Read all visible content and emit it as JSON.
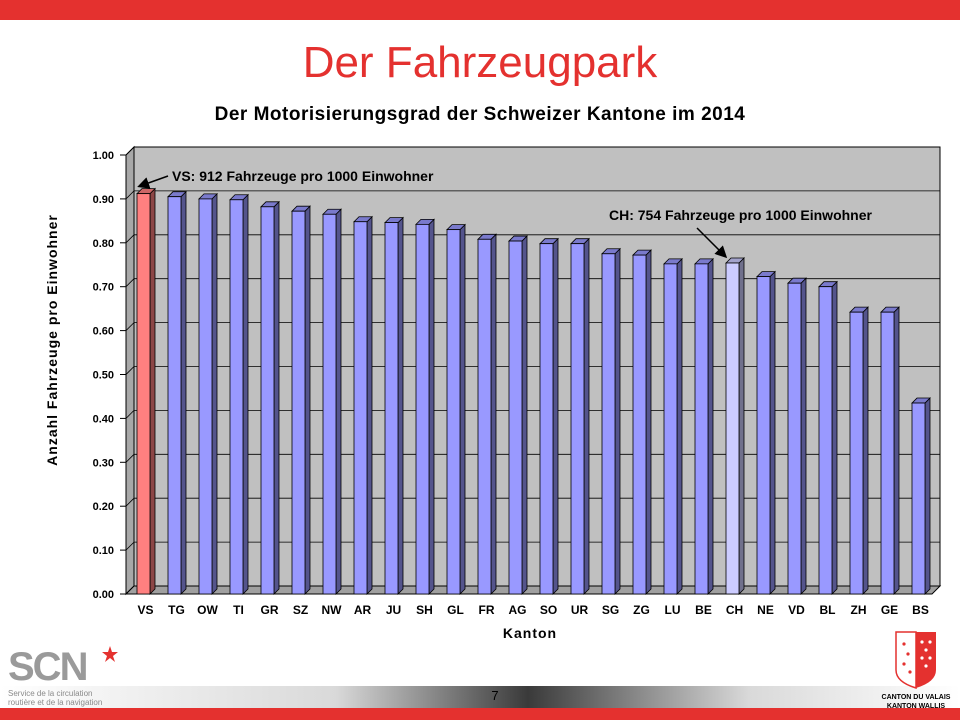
{
  "slide": {
    "title": "Der Fahrzeugpark",
    "page_number": "7"
  },
  "logos": {
    "scn_text": "SCN",
    "scn_caption_1": "Service de la circulation",
    "scn_caption_2": "routière et de la navigation",
    "canton_1": "CANTON DU VALAIS",
    "canton_2": "KANTON WALLIS"
  },
  "colors": {
    "brand_red": "#e4312f",
    "bar_default": "#9999ff",
    "bar_vs": "#ff8080",
    "bar_ch": "#ccccff",
    "plot_bg": "#c0c0c0"
  },
  "chart_data": {
    "type": "bar",
    "title": "Der Motorisierungsgrad der Schweizer Kantone im 2014",
    "xlabel": "Kanton",
    "ylabel": "Anzahl Fahrzeuge pro Einwohner",
    "ylim": [
      0,
      1.0
    ],
    "yticks": [
      "0.00",
      "0.10",
      "0.20",
      "0.30",
      "0.40",
      "0.50",
      "0.60",
      "0.70",
      "0.80",
      "0.90",
      "1.00"
    ],
    "grid": true,
    "categories": [
      "VS",
      "TG",
      "OW",
      "TI",
      "GR",
      "SZ",
      "NW",
      "AR",
      "JU",
      "SH",
      "GL",
      "FR",
      "AG",
      "SO",
      "UR",
      "SG",
      "ZG",
      "LU",
      "BE",
      "CH",
      "NE",
      "VD",
      "BL",
      "ZH",
      "GE",
      "BS"
    ],
    "values": [
      0.912,
      0.905,
      0.9,
      0.898,
      0.882,
      0.872,
      0.865,
      0.848,
      0.846,
      0.842,
      0.83,
      0.808,
      0.804,
      0.798,
      0.798,
      0.775,
      0.772,
      0.752,
      0.752,
      0.754,
      0.723,
      0.708,
      0.7,
      0.642,
      0.642,
      0.435
    ],
    "highlight": {
      "VS": "bar_vs",
      "CH": "bar_ch"
    },
    "annotations": [
      {
        "text": "VS: 912 Fahrzeuge pro 1000 Einwohner",
        "target": "VS"
      },
      {
        "text": "CH: 754 Fahrzeuge pro 1000 Einwohner",
        "target": "CH"
      }
    ]
  }
}
